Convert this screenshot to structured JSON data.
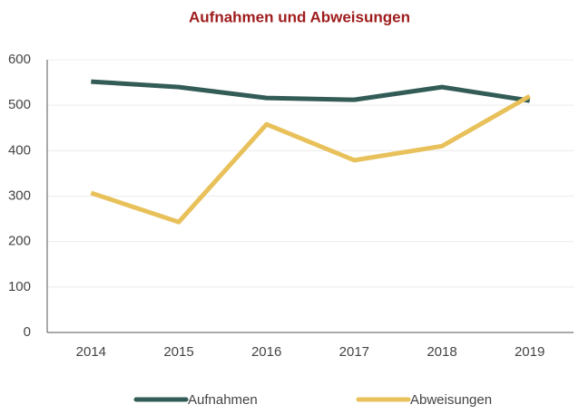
{
  "chart_data": {
    "type": "line",
    "title": "Aufnahmen und Abweisungen",
    "categories": [
      "2014",
      "2015",
      "2016",
      "2017",
      "2018",
      "2019"
    ],
    "series": [
      {
        "name": "Aufnahmen",
        "color": "#335c57",
        "values": [
          552,
          540,
          516,
          512,
          540,
          510
        ]
      },
      {
        "name": "Abweisungen",
        "color": "#e8c15a",
        "values": [
          307,
          243,
          458,
          379,
          410,
          520
        ]
      }
    ],
    "ylim": [
      0,
      600
    ],
    "yticks": [
      0,
      100,
      200,
      300,
      400,
      500,
      600
    ],
    "grid": true,
    "legend": "bottom"
  }
}
